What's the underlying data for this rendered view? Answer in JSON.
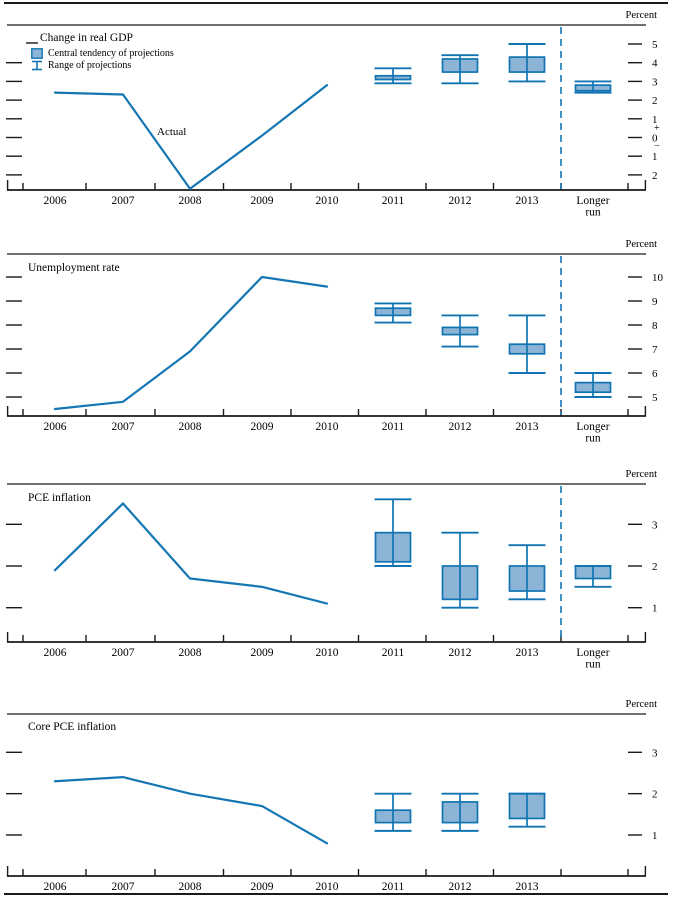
{
  "page": {
    "percent_label": "Percent"
  },
  "colors": {
    "line": "#1576b4",
    "box_fill": "#8cb4d6",
    "box_border": "#1174b2",
    "dashed_separator": "#1576b4",
    "axis": "#1a1a1a"
  },
  "legend": {
    "central_tendency_label": "Central tendency of projections",
    "range_label": "Range of projections"
  },
  "actual_annotation": "Actual",
  "x_axis_years": [
    "2006",
    "2007",
    "2008",
    "2009",
    "2010",
    "2011",
    "2012",
    "2013"
  ],
  "longer_run_label": [
    "Longer",
    "run"
  ],
  "chart_data": [
    {
      "type": "line",
      "title": "Change in real GDP",
      "ylabel": "Percent",
      "has_longer_run": true,
      "y_axis": {
        "ticks": [
          {
            "v": 5,
            "label": "5"
          },
          {
            "v": 4,
            "label": "4"
          },
          {
            "v": 3,
            "label": "3"
          },
          {
            "v": 2,
            "label": "2"
          },
          {
            "v": 1,
            "label": "1"
          },
          {
            "v": 0,
            "label": "0"
          },
          {
            "v": -1,
            "label": "1"
          },
          {
            "v": -2,
            "label": "2"
          }
        ],
        "positive_sign": "+",
        "negative_sign": "−"
      },
      "actual_line": {
        "x": [
          "2006",
          "2007",
          "2008",
          "2009",
          "2010"
        ],
        "values": [
          2.4,
          2.3,
          -2.8,
          0.1,
          2.8
        ]
      },
      "projections": [
        {
          "period": "2011",
          "central_tendency": [
            3.1,
            3.3
          ],
          "range": [
            2.9,
            3.7
          ]
        },
        {
          "period": "2012",
          "central_tendency": [
            3.5,
            4.2
          ],
          "range": [
            2.9,
            4.4
          ]
        },
        {
          "period": "2013",
          "central_tendency": [
            3.5,
            4.3
          ],
          "range": [
            3.0,
            5.0
          ]
        },
        {
          "period": "Longer run",
          "central_tendency": [
            2.5,
            2.8
          ],
          "range": [
            2.4,
            3.0
          ]
        }
      ]
    },
    {
      "type": "line",
      "title": "Unemployment rate",
      "ylabel": "Percent",
      "has_longer_run": true,
      "y_axis": {
        "ticks": [
          {
            "v": 10,
            "label": "10"
          },
          {
            "v": 9,
            "label": "9"
          },
          {
            "v": 8,
            "label": "8"
          },
          {
            "v": 7,
            "label": "7"
          },
          {
            "v": 6,
            "label": "6"
          },
          {
            "v": 5,
            "label": "5"
          }
        ]
      },
      "actual_line": {
        "x": [
          "2006",
          "2007",
          "2008",
          "2009",
          "2010"
        ],
        "values": [
          4.5,
          4.8,
          6.9,
          10.0,
          9.6
        ]
      },
      "projections": [
        {
          "period": "2011",
          "central_tendency": [
            8.4,
            8.7
          ],
          "range": [
            8.1,
            8.9
          ]
        },
        {
          "period": "2012",
          "central_tendency": [
            7.6,
            7.9
          ],
          "range": [
            7.1,
            8.4
          ]
        },
        {
          "period": "2013",
          "central_tendency": [
            6.8,
            7.2
          ],
          "range": [
            6.0,
            8.4
          ]
        },
        {
          "period": "Longer run",
          "central_tendency": [
            5.2,
            5.6
          ],
          "range": [
            5.0,
            6.0
          ]
        }
      ]
    },
    {
      "type": "line",
      "title": "PCE inflation",
      "ylabel": "Percent",
      "has_longer_run": true,
      "y_axis": {
        "ticks": [
          {
            "v": 3,
            "label": "3"
          },
          {
            "v": 2,
            "label": "2"
          },
          {
            "v": 1,
            "label": "1"
          }
        ]
      },
      "actual_line": {
        "x": [
          "2006",
          "2007",
          "2008",
          "2009",
          "2010"
        ],
        "values": [
          1.9,
          3.5,
          1.7,
          1.5,
          1.1
        ]
      },
      "projections": [
        {
          "period": "2011",
          "central_tendency": [
            2.1,
            2.8
          ],
          "range": [
            2.0,
            3.6
          ]
        },
        {
          "period": "2012",
          "central_tendency": [
            1.2,
            2.0
          ],
          "range": [
            1.0,
            2.8
          ]
        },
        {
          "period": "2013",
          "central_tendency": [
            1.4,
            2.0
          ],
          "range": [
            1.2,
            2.5
          ]
        },
        {
          "period": "Longer run",
          "central_tendency": [
            1.7,
            2.0
          ],
          "range": [
            1.5,
            2.0
          ]
        }
      ]
    },
    {
      "type": "line",
      "title": "Core PCE inflation",
      "ylabel": "Percent",
      "has_longer_run": false,
      "y_axis": {
        "ticks": [
          {
            "v": 3,
            "label": "3"
          },
          {
            "v": 2,
            "label": "2"
          },
          {
            "v": 1,
            "label": "1"
          }
        ]
      },
      "actual_line": {
        "x": [
          "2006",
          "2007",
          "2008",
          "2009",
          "2010"
        ],
        "values": [
          2.3,
          2.4,
          2.0,
          1.7,
          0.8
        ]
      },
      "projections": [
        {
          "period": "2011",
          "central_tendency": [
            1.3,
            1.6
          ],
          "range": [
            1.1,
            2.0
          ]
        },
        {
          "period": "2012",
          "central_tendency": [
            1.3,
            1.8
          ],
          "range": [
            1.1,
            2.0
          ]
        },
        {
          "period": "2013",
          "central_tendency": [
            1.4,
            2.0
          ],
          "range": [
            1.2,
            2.0
          ]
        }
      ]
    }
  ]
}
